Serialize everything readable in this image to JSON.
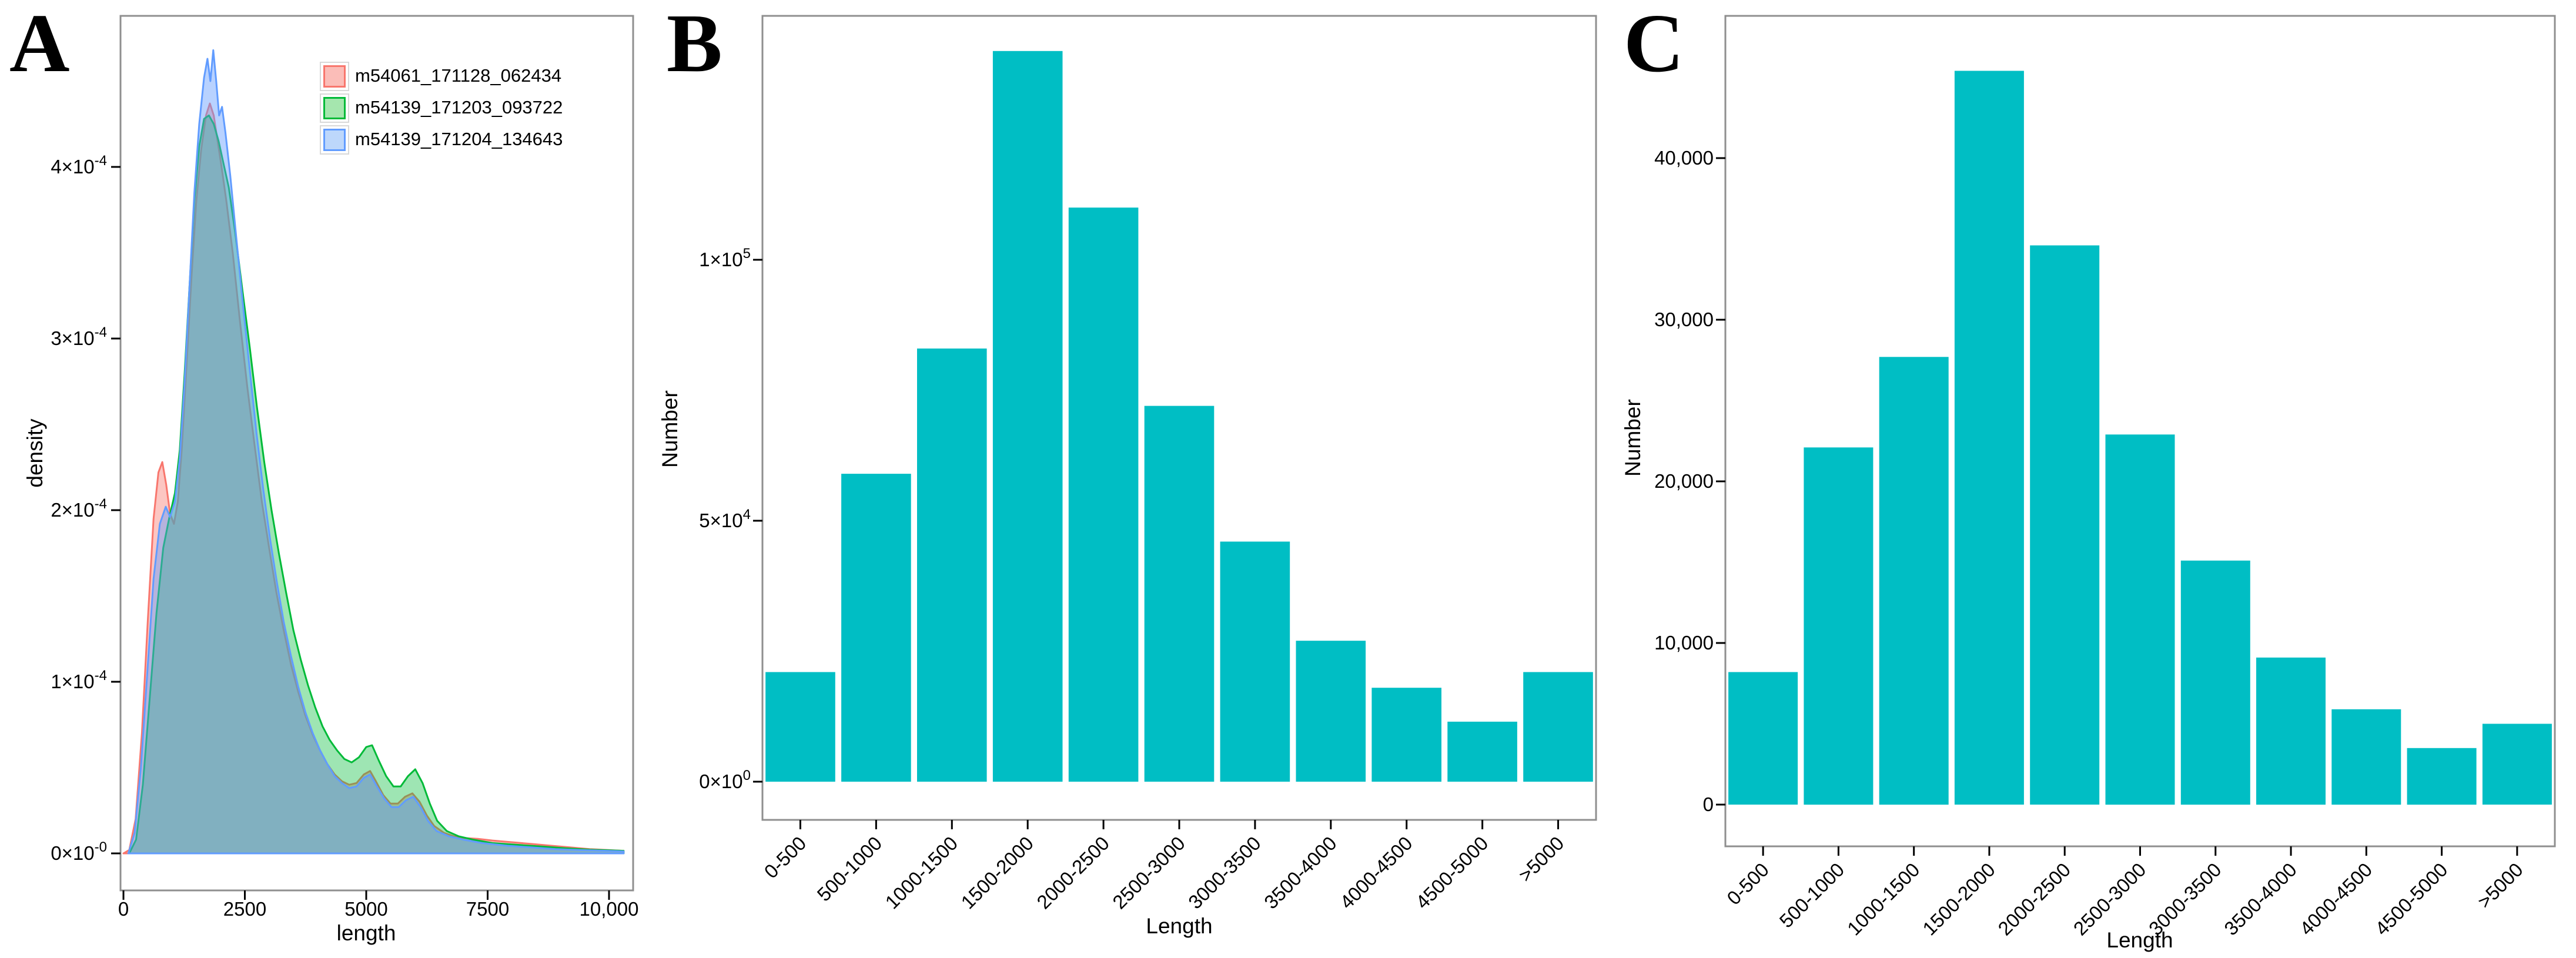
{
  "colors": {
    "bar_fill": "#00BEC4",
    "panel_border": "#8F8F8F",
    "tick": "#000000",
    "text": "#000000",
    "legend_frame": "#D8D8D8",
    "series": [
      {
        "name": "m54061_171128_062434",
        "stroke": "#F8766D",
        "fill": "rgba(248,118,109,0.42)",
        "swatch_fill": "#FBBDB8"
      },
      {
        "name": "m54139_171203_093722",
        "stroke": "#00BA38",
        "fill": "rgba(0,186,56,0.38)",
        "swatch_fill": "#A5E6AE"
      },
      {
        "name": "m54139_171204_134643",
        "stroke": "#619CFF",
        "fill": "rgba(97,156,255,0.45)",
        "swatch_fill": "#BDD7FB"
      }
    ]
  },
  "chart_data": [
    {
      "panel_label": "A",
      "type": "area",
      "xlabel": "length",
      "ylabel": "density",
      "grid": false,
      "legend_position": "top-left-inside",
      "xlim": [
        -60,
        10500
      ],
      "ylim_e4": [
        0,
        4.88
      ],
      "x_ticks": [
        {
          "v": 0,
          "label": "0"
        },
        {
          "v": 2500,
          "label": "2500"
        },
        {
          "v": 5000,
          "label": "5000"
        },
        {
          "v": 7500,
          "label": "7500"
        },
        {
          "v": 10000,
          "label": "10,000"
        }
      ],
      "y_ticks": [
        {
          "v": 0,
          "base": "0×10",
          "sup": "-0"
        },
        {
          "v": 1,
          "base": "1×10",
          "sup": "-4"
        },
        {
          "v": 2,
          "base": "2×10",
          "sup": "-4"
        },
        {
          "v": 3,
          "base": "3×10",
          "sup": "-4"
        },
        {
          "v": 4,
          "base": "4×10",
          "sup": "-4"
        }
      ],
      "legend": [
        {
          "label": "m54061_171128_062434"
        },
        {
          "label": "m54139_171203_093722"
        },
        {
          "label": "m54139_171204_134643"
        }
      ],
      "series": [
        {
          "name": "m54061_171128_062434",
          "points": [
            [
              0,
              0
            ],
            [
              120,
              0.02
            ],
            [
              250,
              0.2
            ],
            [
              380,
              0.7
            ],
            [
              500,
              1.35
            ],
            [
              620,
              1.95
            ],
            [
              720,
              2.22
            ],
            [
              800,
              2.28
            ],
            [
              880,
              2.15
            ],
            [
              960,
              1.98
            ],
            [
              1040,
              1.92
            ],
            [
              1120,
              2.05
            ],
            [
              1200,
              2.35
            ],
            [
              1300,
              2.85
            ],
            [
              1400,
              3.35
            ],
            [
              1500,
              3.8
            ],
            [
              1600,
              4.1
            ],
            [
              1700,
              4.3
            ],
            [
              1780,
              4.37
            ],
            [
              1860,
              4.3
            ],
            [
              1940,
              4.15
            ],
            [
              2020,
              4.0
            ],
            [
              2120,
              3.8
            ],
            [
              2250,
              3.5
            ],
            [
              2400,
              3.1
            ],
            [
              2550,
              2.72
            ],
            [
              2700,
              2.38
            ],
            [
              2850,
              2.05
            ],
            [
              3000,
              1.78
            ],
            [
              3150,
              1.52
            ],
            [
              3300,
              1.3
            ],
            [
              3450,
              1.1
            ],
            [
              3600,
              0.94
            ],
            [
              3750,
              0.8
            ],
            [
              3900,
              0.69
            ],
            [
              4050,
              0.6
            ],
            [
              4200,
              0.52
            ],
            [
              4350,
              0.46
            ],
            [
              4500,
              0.42
            ],
            [
              4650,
              0.4
            ],
            [
              4800,
              0.41
            ],
            [
              4950,
              0.46
            ],
            [
              5080,
              0.48
            ],
            [
              5200,
              0.42
            ],
            [
              5350,
              0.34
            ],
            [
              5500,
              0.29
            ],
            [
              5650,
              0.29
            ],
            [
              5800,
              0.33
            ],
            [
              5950,
              0.35
            ],
            [
              6100,
              0.3
            ],
            [
              6250,
              0.22
            ],
            [
              6400,
              0.16
            ],
            [
              6600,
              0.12
            ],
            [
              6800,
              0.1
            ],
            [
              7000,
              0.09
            ],
            [
              7300,
              0.085
            ],
            [
              7600,
              0.075
            ],
            [
              8000,
              0.065
            ],
            [
              8400,
              0.055
            ],
            [
              8800,
              0.045
            ],
            [
              9200,
              0.035
            ],
            [
              9600,
              0.025
            ],
            [
              10300,
              0.015
            ]
          ]
        },
        {
          "name": "m54139_171203_093722",
          "points": [
            [
              120,
              0
            ],
            [
              260,
              0.08
            ],
            [
              400,
              0.4
            ],
            [
              540,
              0.9
            ],
            [
              680,
              1.4
            ],
            [
              820,
              1.78
            ],
            [
              940,
              1.95
            ],
            [
              1060,
              2.1
            ],
            [
              1160,
              2.35
            ],
            [
              1260,
              2.8
            ],
            [
              1360,
              3.3
            ],
            [
              1460,
              3.8
            ],
            [
              1560,
              4.12
            ],
            [
              1660,
              4.28
            ],
            [
              1760,
              4.3
            ],
            [
              1860,
              4.25
            ],
            [
              1960,
              4.15
            ],
            [
              2060,
              4.02
            ],
            [
              2170,
              3.88
            ],
            [
              2300,
              3.62
            ],
            [
              2450,
              3.28
            ],
            [
              2600,
              2.95
            ],
            [
              2750,
              2.6
            ],
            [
              2900,
              2.28
            ],
            [
              3050,
              2.0
            ],
            [
              3200,
              1.75
            ],
            [
              3350,
              1.52
            ],
            [
              3500,
              1.3
            ],
            [
              3650,
              1.13
            ],
            [
              3800,
              0.98
            ],
            [
              3950,
              0.85
            ],
            [
              4100,
              0.74
            ],
            [
              4250,
              0.66
            ],
            [
              4400,
              0.6
            ],
            [
              4550,
              0.55
            ],
            [
              4700,
              0.53
            ],
            [
              4850,
              0.56
            ],
            [
              5000,
              0.62
            ],
            [
              5120,
              0.63
            ],
            [
              5260,
              0.54
            ],
            [
              5410,
              0.45
            ],
            [
              5560,
              0.39
            ],
            [
              5710,
              0.39
            ],
            [
              5860,
              0.45
            ],
            [
              6010,
              0.49
            ],
            [
              6160,
              0.41
            ],
            [
              6310,
              0.29
            ],
            [
              6460,
              0.19
            ],
            [
              6660,
              0.13
            ],
            [
              6900,
              0.1
            ],
            [
              7200,
              0.08
            ],
            [
              7600,
              0.06
            ],
            [
              8100,
              0.05
            ],
            [
              8600,
              0.04
            ],
            [
              9100,
              0.03
            ],
            [
              9600,
              0.022
            ],
            [
              10300,
              0.015
            ]
          ]
        },
        {
          "name": "m54139_171204_134643",
          "points": [
            [
              100,
              0
            ],
            [
              230,
              0.12
            ],
            [
              360,
              0.5
            ],
            [
              490,
              1.05
            ],
            [
              620,
              1.6
            ],
            [
              750,
              1.92
            ],
            [
              870,
              2.02
            ],
            [
              960,
              1.96
            ],
            [
              1060,
              2.05
            ],
            [
              1160,
              2.3
            ],
            [
              1260,
              2.75
            ],
            [
              1360,
              3.3
            ],
            [
              1460,
              3.85
            ],
            [
              1560,
              4.25
            ],
            [
              1660,
              4.52
            ],
            [
              1730,
              4.63
            ],
            [
              1790,
              4.5
            ],
            [
              1850,
              4.68
            ],
            [
              1910,
              4.5
            ],
            [
              1970,
              4.3
            ],
            [
              2030,
              4.35
            ],
            [
              2100,
              4.2
            ],
            [
              2200,
              3.95
            ],
            [
              2320,
              3.6
            ],
            [
              2460,
              3.2
            ],
            [
              2600,
              2.82
            ],
            [
              2740,
              2.45
            ],
            [
              2880,
              2.12
            ],
            [
              3020,
              1.83
            ],
            [
              3160,
              1.58
            ],
            [
              3300,
              1.35
            ],
            [
              3450,
              1.15
            ],
            [
              3600,
              0.97
            ],
            [
              3750,
              0.82
            ],
            [
              3900,
              0.7
            ],
            [
              4050,
              0.6
            ],
            [
              4200,
              0.52
            ],
            [
              4350,
              0.45
            ],
            [
              4500,
              0.41
            ],
            [
              4650,
              0.38
            ],
            [
              4800,
              0.39
            ],
            [
              4950,
              0.44
            ],
            [
              5080,
              0.46
            ],
            [
              5220,
              0.39
            ],
            [
              5370,
              0.32
            ],
            [
              5520,
              0.27
            ],
            [
              5670,
              0.27
            ],
            [
              5820,
              0.31
            ],
            [
              5970,
              0.33
            ],
            [
              6120,
              0.27
            ],
            [
              6270,
              0.19
            ],
            [
              6450,
              0.13
            ],
            [
              6700,
              0.1
            ],
            [
              7000,
              0.08
            ],
            [
              7400,
              0.06
            ],
            [
              7900,
              0.045
            ],
            [
              8400,
              0.035
            ],
            [
              8900,
              0.025
            ],
            [
              9400,
              0.02
            ],
            [
              10300,
              0.012
            ]
          ]
        }
      ]
    },
    {
      "panel_label": "B",
      "type": "bar",
      "xlabel": "Length",
      "ylabel": "Number",
      "grid": false,
      "ylim": [
        0,
        147500
      ],
      "categories": [
        "0-500",
        "500-1000",
        "1000-1500",
        "1500-2000",
        "2000-2500",
        "2500-3000",
        "3000-3500",
        "3500-4000",
        "4000-4500",
        "4500-5000",
        ">5000"
      ],
      "values": [
        21000,
        59000,
        83000,
        140000,
        110000,
        72000,
        46000,
        27000,
        18000,
        11500,
        21000
      ],
      "y_ticks": [
        {
          "v": 0,
          "base": "0×10",
          "sup": "0"
        },
        {
          "v": 50000,
          "base": "5×10",
          "sup": "4"
        },
        {
          "v": 100000,
          "base": "1×10",
          "sup": "5"
        }
      ]
    },
    {
      "panel_label": "C",
      "type": "bar",
      "xlabel": "Length",
      "ylabel": "Number",
      "grid": false,
      "ylim": [
        0,
        48800
      ],
      "categories": [
        "0-500",
        "500-1000",
        "1000-1500",
        "1500-2000",
        "2000-2500",
        "2500-3000",
        "3000-3500",
        "3500-4000",
        "4000-4500",
        "4500-5000",
        ">5000"
      ],
      "values": [
        8200,
        22100,
        27700,
        45400,
        34600,
        22900,
        15100,
        9100,
        5900,
        3500,
        5000
      ],
      "y_ticks": [
        {
          "v": 0,
          "base": "0",
          "sup": ""
        },
        {
          "v": 10000,
          "base": "10,000",
          "sup": ""
        },
        {
          "v": 20000,
          "base": "20,000",
          "sup": ""
        },
        {
          "v": 30000,
          "base": "30,000",
          "sup": ""
        },
        {
          "v": 40000,
          "base": "40,000",
          "sup": ""
        }
      ]
    }
  ]
}
